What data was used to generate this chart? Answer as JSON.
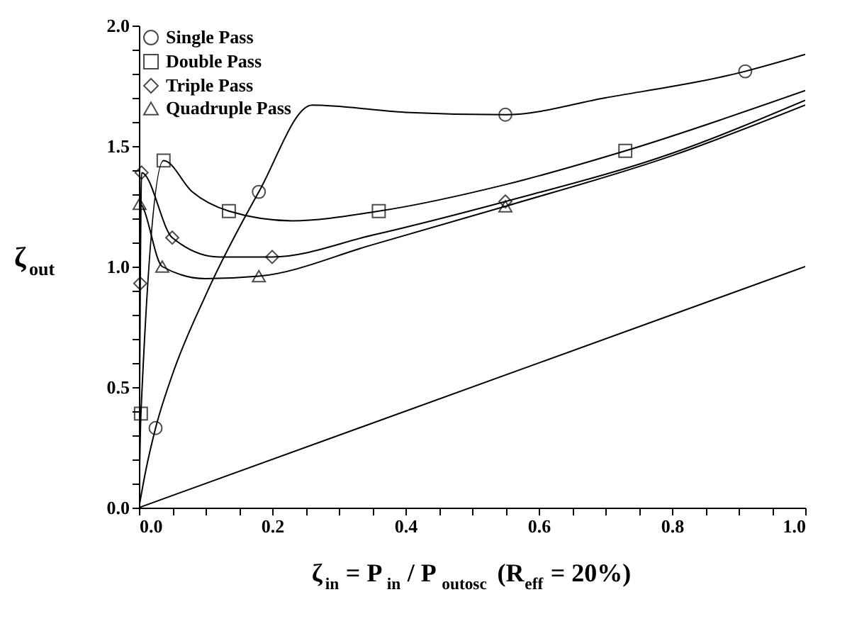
{
  "chart_data": {
    "type": "line",
    "xlabel": "ζ$_{in}$ = P$_{in}$ / P$_{outosc}$ (R$_{eff}$ = 20%)",
    "ylabel": "ζ$_{out}$",
    "xlim": [
      0,
      1.0
    ],
    "ylim": [
      0,
      2.0
    ],
    "xticks": [
      {
        "value": 0,
        "label": "0.0"
      },
      {
        "value": 0.05,
        "label": null
      },
      {
        "value": 0.1,
        "label": null
      },
      {
        "value": 0.15,
        "label": null
      },
      {
        "value": 0.2,
        "label": "0.2"
      },
      {
        "value": 0.25,
        "label": null
      },
      {
        "value": 0.3,
        "label": null
      },
      {
        "value": 0.35,
        "label": null
      },
      {
        "value": 0.4,
        "label": "0.4"
      },
      {
        "value": 0.45,
        "label": null
      },
      {
        "value": 0.5,
        "label": null
      },
      {
        "value": 0.55,
        "label": null
      },
      {
        "value": 0.6,
        "label": "0.6"
      },
      {
        "value": 0.65,
        "label": null
      },
      {
        "value": 0.7,
        "label": null
      },
      {
        "value": 0.75,
        "label": null
      },
      {
        "value": 0.8,
        "label": "0.8"
      },
      {
        "value": 0.85,
        "label": null
      },
      {
        "value": 0.9,
        "label": null
      },
      {
        "value": 0.95,
        "label": null
      },
      {
        "value": 1.0,
        "label": "1.0"
      }
    ],
    "yticks": [
      {
        "value": 0,
        "label": "0.0"
      },
      {
        "value": 0.1,
        "label": null
      },
      {
        "value": 0.2,
        "label": null
      },
      {
        "value": 0.3,
        "label": null
      },
      {
        "value": 0.4,
        "label": null
      },
      {
        "value": 0.5,
        "label": "0.5"
      },
      {
        "value": 0.6,
        "label": null
      },
      {
        "value": 0.7,
        "label": null
      },
      {
        "value": 0.8,
        "label": null
      },
      {
        "value": 0.9,
        "label": null
      },
      {
        "value": 1.0,
        "label": "1.0"
      },
      {
        "value": 1.1,
        "label": null
      },
      {
        "value": 1.2,
        "label": null
      },
      {
        "value": 1.3,
        "label": null
      },
      {
        "value": 1.4,
        "label": null
      },
      {
        "value": 1.5,
        "label": "1.5"
      },
      {
        "value": 1.6,
        "label": null
      },
      {
        "value": 1.7,
        "label": null
      },
      {
        "value": 1.8,
        "label": null
      },
      {
        "value": 1.9,
        "label": null
      },
      {
        "value": 2.0,
        "label": "2.0"
      }
    ],
    "grid": false,
    "legend": "top left",
    "line_style": "solid",
    "series": [
      {
        "type": "line",
        "marker": "none",
        "color": "#000000",
        "x": [
          0,
          0.01,
          0.025,
          0.05,
          0.1,
          0.18,
          0.26,
          0.4,
          0.55,
          0.7,
          0.91,
          1.0
        ],
        "values": [
          0,
          0.15,
          0.33,
          0.55,
          0.88,
          1.31,
          1.67,
          1.64,
          1.63,
          1.7,
          1.81,
          1.88
        ]
      },
      {
        "type": "line",
        "marker": "none",
        "color": "#000000",
        "x": [
          0,
          0.003,
          0.037,
          0.08,
          0.135,
          0.23,
          0.36,
          0.55,
          0.73,
          1.0
        ],
        "values": [
          0,
          0.39,
          1.44,
          1.31,
          1.23,
          1.19,
          1.23,
          1.34,
          1.48,
          1.73
        ]
      },
      {
        "type": "line",
        "marker": "none",
        "color": "#000000",
        "x": [
          0,
          0.002,
          0.004,
          0.05,
          0.12,
          0.2,
          0.35,
          0.55,
          0.8,
          1.0
        ],
        "values": [
          0,
          0.93,
          1.39,
          1.12,
          1.04,
          1.04,
          1.13,
          1.27,
          1.47,
          1.69
        ]
      },
      {
        "type": "line",
        "marker": "none",
        "color": "#000000",
        "x": [
          0,
          0.001,
          0.035,
          0.1,
          0.18,
          0.35,
          0.55,
          0.8,
          1.0
        ],
        "values": [
          0,
          1.26,
          1.0,
          0.95,
          0.96,
          1.09,
          1.25,
          1.46,
          1.67
        ]
      },
      {
        "type": "line",
        "marker": "none",
        "color": "#000000",
        "x": [
          0,
          1.0
        ],
        "values": [
          0,
          1.0
        ]
      },
      {
        "type": "scatter",
        "name": "Single Pass",
        "marker": "circle",
        "color": "#000000",
        "x": [
          0.025,
          0.18,
          0.55,
          0.91
        ],
        "values": [
          0.33,
          1.31,
          1.63,
          1.81
        ]
      },
      {
        "type": "scatter",
        "name": "Double Pass",
        "marker": "square",
        "color": "#000000",
        "x": [
          0.003,
          0.037,
          0.135,
          0.36,
          0.73
        ],
        "values": [
          0.39,
          1.44,
          1.23,
          1.23,
          1.48
        ]
      },
      {
        "type": "scatter",
        "name": "Triple Pass",
        "marker": "diamond",
        "color": "#000000",
        "x": [
          0.002,
          0.004,
          0.05,
          0.2,
          0.55
        ],
        "values": [
          0.93,
          1.39,
          1.12,
          1.04,
          1.27
        ]
      },
      {
        "type": "scatter",
        "name": "Quadruple Pass",
        "marker": "triangle",
        "color": "#000000",
        "x": [
          0.001,
          0.035,
          0.18,
          0.55
        ],
        "values": [
          1.26,
          1.0,
          0.96,
          1.25
        ]
      }
    ]
  }
}
